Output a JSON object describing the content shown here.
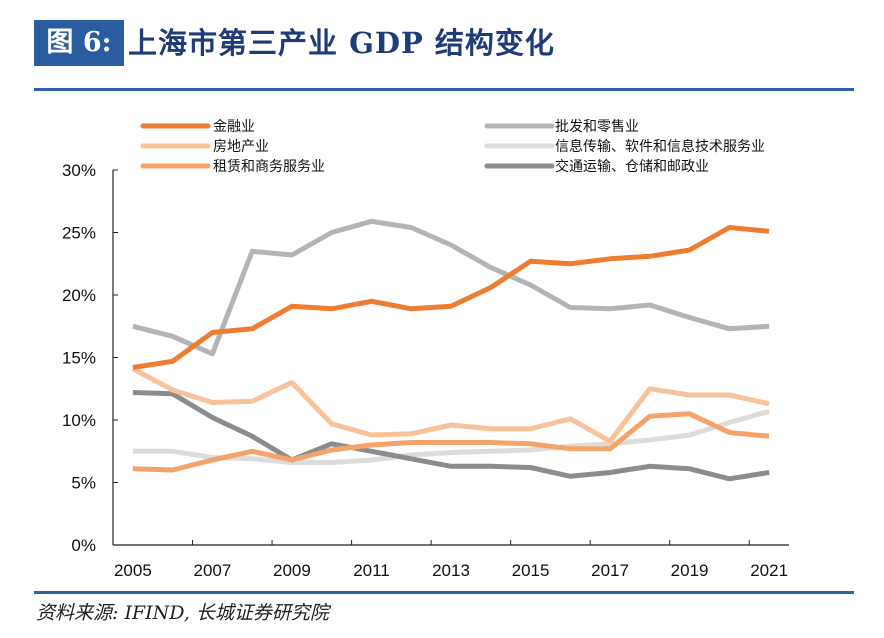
{
  "header": {
    "badge": "图 6:",
    "title": "上海市第三产业 GDP 结构变化"
  },
  "footer": {
    "source": "资料来源: IFIND, 长城证券研究院"
  },
  "chart_data": {
    "type": "line",
    "title": "上海市第三产业 GDP 结构变化",
    "xlabel": "",
    "ylabel": "",
    "x": [
      2005,
      2006,
      2007,
      2008,
      2009,
      2010,
      2011,
      2012,
      2013,
      2014,
      2015,
      2016,
      2017,
      2018,
      2019,
      2020,
      2021
    ],
    "x_tick_labels": [
      "2005",
      "2007",
      "2009",
      "2011",
      "2013",
      "2015",
      "2017",
      "2019",
      "2021"
    ],
    "y_tick_labels": [
      "0%",
      "5%",
      "10%",
      "15%",
      "20%",
      "25%",
      "30%"
    ],
    "y_ticks": [
      0,
      5,
      10,
      15,
      20,
      25,
      30
    ],
    "ylim": [
      0,
      30
    ],
    "grid": false,
    "legend_position": "top",
    "series": [
      {
        "name": "金融业",
        "color": "#ed7d31",
        "values": [
          14.2,
          14.7,
          17.0,
          17.3,
          19.1,
          18.9,
          19.5,
          18.9,
          19.1,
          20.6,
          22.7,
          22.5,
          22.9,
          23.1,
          23.6,
          25.4,
          25.1
        ]
      },
      {
        "name": "批发和零售业",
        "color": "#b4b4b4",
        "values": [
          17.5,
          16.7,
          15.3,
          23.5,
          23.2,
          25.0,
          25.9,
          25.4,
          24.0,
          22.2,
          20.8,
          19.0,
          18.9,
          19.2,
          18.2,
          17.3,
          17.5
        ]
      },
      {
        "name": "房地产业",
        "color": "#f8c39b",
        "values": [
          14.1,
          12.4,
          11.4,
          11.5,
          13.0,
          9.7,
          8.8,
          8.9,
          9.6,
          9.3,
          9.3,
          10.1,
          8.3,
          12.5,
          12.0,
          12.0,
          11.3
        ]
      },
      {
        "name": "信息传输、软件和信息技术服务业",
        "color": "#dcdcdc",
        "values": [
          7.5,
          7.5,
          7.0,
          6.9,
          6.6,
          6.6,
          6.8,
          7.2,
          7.4,
          7.5,
          7.6,
          7.9,
          8.1,
          8.4,
          8.8,
          9.8,
          10.7
        ]
      },
      {
        "name": "租赁和商务服务业",
        "color": "#f4a36a",
        "values": [
          6.1,
          6.0,
          6.8,
          7.5,
          6.8,
          7.6,
          8.0,
          8.2,
          8.2,
          8.2,
          8.1,
          7.7,
          7.7,
          10.3,
          10.5,
          9.0,
          8.7
        ]
      },
      {
        "name": "交通运输、仓储和邮政业",
        "color": "#8c8c8c",
        "values": [
          12.2,
          12.1,
          10.2,
          8.7,
          6.8,
          8.1,
          7.5,
          6.9,
          6.3,
          6.3,
          6.2,
          5.5,
          5.8,
          6.3,
          6.1,
          5.3,
          5.8
        ]
      }
    ],
    "legend_order": [
      0,
      1,
      2,
      3,
      4,
      5
    ]
  }
}
